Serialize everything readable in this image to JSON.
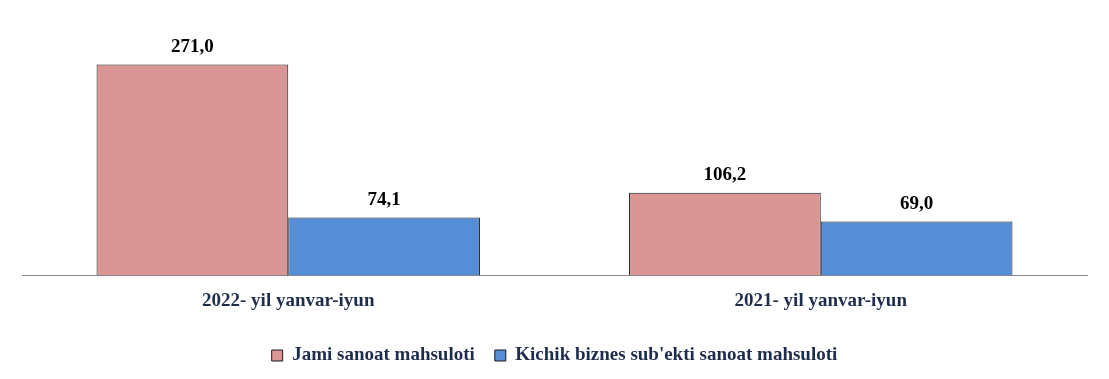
{
  "chart_data": {
    "type": "bar",
    "categories": [
      "2022- yil yanvar-iyun",
      "2021- yil yanvar-iyun"
    ],
    "series": [
      {
        "name": "Jami sanoat mahsuloti",
        "color": "#d99694",
        "values": [
          271.0,
          106.2
        ],
        "value_labels": [
          "271,0",
          "106,2"
        ]
      },
      {
        "name": "Kichik biznes sub'ekti sanoat mahsuloti",
        "color": "#558ed5",
        "values": [
          74.1,
          69.0
        ],
        "value_labels": [
          "74,1",
          "69,0"
        ]
      }
    ],
    "legend": "bottom",
    "grid": false
  }
}
